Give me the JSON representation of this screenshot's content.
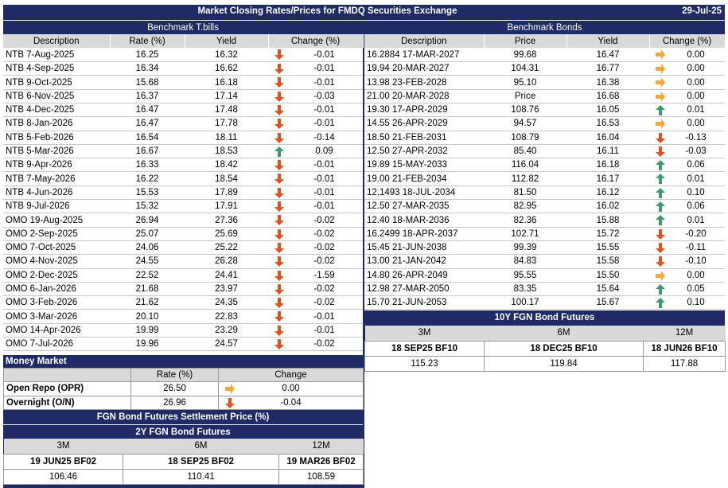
{
  "title": "Market Closing Rates/Prices for FMDQ Securities Exchange",
  "date": "29-Jul-25",
  "tbills": {
    "heading": "Benchmark T.bills",
    "columns": [
      "Description",
      "Rate (%)",
      "Yield",
      "Change (%)"
    ],
    "rows": [
      {
        "desc": "NTB 7-Aug-2025",
        "rate": "16.25",
        "yield": "16.32",
        "dir": "down",
        "chg": "-0.01"
      },
      {
        "desc": "NTB 4-Sep-2025",
        "rate": "16.34",
        "yield": "16.62",
        "dir": "down",
        "chg": "-0.01"
      },
      {
        "desc": "NTB 9-Oct-2025",
        "rate": "15.68",
        "yield": "16.18",
        "dir": "down",
        "chg": "-0.01"
      },
      {
        "desc": "NTB 6-Nov-2025",
        "rate": "16.37",
        "yield": "17.14",
        "dir": "down",
        "chg": "-0.03"
      },
      {
        "desc": "NTB 4-Dec-2025",
        "rate": "16.47",
        "yield": "17.48",
        "dir": "down",
        "chg": "-0.01"
      },
      {
        "desc": "NTB 8-Jan-2026",
        "rate": "16.47",
        "yield": "17.78",
        "dir": "down",
        "chg": "-0.01"
      },
      {
        "desc": "NTB 5-Feb-2026",
        "rate": "16.54",
        "yield": "18.11",
        "dir": "down",
        "chg": "-0.14"
      },
      {
        "desc": "NTB 5-Mar-2026",
        "rate": "16.67",
        "yield": "18.53",
        "dir": "up",
        "chg": "0.09"
      },
      {
        "desc": "NTB 9-Apr-2026",
        "rate": "16.33",
        "yield": "18.42",
        "dir": "down",
        "chg": "-0.01"
      },
      {
        "desc": "NTB 7-May-2026",
        "rate": "16.22",
        "yield": "18.54",
        "dir": "down",
        "chg": "-0.01"
      },
      {
        "desc": "NTB 4-Jun-2026",
        "rate": "15.53",
        "yield": "17.89",
        "dir": "down",
        "chg": "-0.01"
      },
      {
        "desc": "NTB 9-Jul-2026",
        "rate": "15.32",
        "yield": "17.91",
        "dir": "down",
        "chg": "-0.01"
      },
      {
        "desc": "OMO 19-Aug-2025",
        "rate": "26.94",
        "yield": "27.36",
        "dir": "down",
        "chg": "-0.02"
      },
      {
        "desc": "OMO 2-Sep-2025",
        "rate": "25.07",
        "yield": "25.69",
        "dir": "down",
        "chg": "-0.02"
      },
      {
        "desc": "OMO 7-Oct-2025",
        "rate": "24.06",
        "yield": "25.22",
        "dir": "down",
        "chg": "-0.02"
      },
      {
        "desc": "OMO 4-Nov-2025",
        "rate": "24.55",
        "yield": "26.28",
        "dir": "down",
        "chg": "-0.02"
      },
      {
        "desc": "OMO 2-Dec-2025",
        "rate": "22.52",
        "yield": "24.41",
        "dir": "down",
        "chg": "-1.59"
      },
      {
        "desc": "OMO 6-Jan-2026",
        "rate": "21.68",
        "yield": "23.97",
        "dir": "down",
        "chg": "-0.02"
      },
      {
        "desc": "OMO 3-Feb-2026",
        "rate": "21.62",
        "yield": "24.35",
        "dir": "down",
        "chg": "-0.02"
      },
      {
        "desc": "OMO 3-Mar-2026",
        "rate": "20.10",
        "yield": "22.83",
        "dir": "down",
        "chg": "-0.01"
      },
      {
        "desc": "OMO 14-Apr-2026",
        "rate": "19.99",
        "yield": "23.29",
        "dir": "down",
        "chg": "-0.01"
      },
      {
        "desc": "OMO 7-Jul-2026",
        "rate": "19.96",
        "yield": "24.57",
        "dir": "down",
        "chg": "-0.02"
      }
    ]
  },
  "bonds": {
    "heading": "Benchmark Bonds",
    "columns": [
      "Description",
      "Price",
      "Yield",
      "Change (%)"
    ],
    "rows": [
      {
        "desc": "16.2884 17-MAR-2027",
        "price": "99.68",
        "yield": "16.47",
        "dir": "flat",
        "chg": "0.00"
      },
      {
        "desc": "19.94 20-MAR-2027",
        "price": "104.31",
        "yield": "16.77",
        "dir": "flat",
        "chg": "0.00"
      },
      {
        "desc": "13.98 23-FEB-2028",
        "price": "95.10",
        "yield": "16.38",
        "dir": "flat",
        "chg": "0.00"
      },
      {
        "desc": "21.00 20-MAR-2028",
        "price": "Price",
        "yield": "16.68",
        "dir": "flat",
        "chg": "0.00"
      },
      {
        "desc": "19.30 17-APR-2029",
        "price": "108.76",
        "yield": "16.05",
        "dir": "up",
        "chg": "0.01"
      },
      {
        "desc": "14.55 26-APR-2029",
        "price": "94.57",
        "yield": "16.53",
        "dir": "flat",
        "chg": "0.00"
      },
      {
        "desc": "18.50 21-FEB-2031",
        "price": "108.79",
        "yield": "16.04",
        "dir": "down",
        "chg": "-0.13"
      },
      {
        "desc": "12.50 27-APR-2032",
        "price": "85.40",
        "yield": "16.11",
        "dir": "down",
        "chg": "-0.03"
      },
      {
        "desc": "19.89 15-MAY-2033",
        "price": "116.04",
        "yield": "16.18",
        "dir": "up",
        "chg": "0.06"
      },
      {
        "desc": "19.00 21-FEB-2034",
        "price": "112.82",
        "yield": "16.17",
        "dir": "up",
        "chg": "0.01"
      },
      {
        "desc": "12.1493 18-JUL-2034",
        "price": "81.50",
        "yield": "16.12",
        "dir": "up",
        "chg": "0.10"
      },
      {
        "desc": "12.50 27-MAR-2035",
        "price": "82.95",
        "yield": "16.02",
        "dir": "up",
        "chg": "0.06"
      },
      {
        "desc": "12.40 18-MAR-2036",
        "price": "82.36",
        "yield": "15.88",
        "dir": "up",
        "chg": "0.01"
      },
      {
        "desc": "16.2499 18-APR-2037",
        "price": "102.71",
        "yield": "15.72",
        "dir": "down",
        "chg": "-0.20"
      },
      {
        "desc": "15.45 21-JUN-2038",
        "price": "99.39",
        "yield": "15.55",
        "dir": "down",
        "chg": "-0.11"
      },
      {
        "desc": "13.00 21-JAN-2042",
        "price": "84.83",
        "yield": "15.58",
        "dir": "down",
        "chg": "-0.10"
      },
      {
        "desc": "14.80 26-APR-2049",
        "price": "95.55",
        "yield": "15.50",
        "dir": "flat",
        "chg": "0.00"
      },
      {
        "desc": "12.98 27-MAR-2050",
        "price": "83.35",
        "yield": "15.64",
        "dir": "up",
        "chg": "0.05"
      },
      {
        "desc": "15.70 21-JUN-2053",
        "price": "100.17",
        "yield": "15.67",
        "dir": "up",
        "chg": "0.10"
      }
    ]
  },
  "fut10": {
    "heading": "10Y FGN Bond Futures",
    "tenors": [
      "3M",
      "6M",
      "12M"
    ],
    "codes": [
      "18 SEP25 BF10",
      "18 DEC25 BF10",
      "18 JUN26 BF10"
    ],
    "values": [
      "115.23",
      "119.84",
      "117.88"
    ]
  },
  "money_market": {
    "heading": "Money Market",
    "columns": [
      "Rate (%)",
      "Change"
    ],
    "rows": [
      {
        "label": "Open Repo (OPR)",
        "rate": "26.50",
        "dir": "flat",
        "chg": "0.00"
      },
      {
        "label": "Overnight (O/N)",
        "rate": "26.96",
        "dir": "down",
        "chg": "-0.04"
      }
    ]
  },
  "fgn": {
    "heading": "FGN Bond Futures Settlement Price (%)",
    "subheading": "2Y FGN Bond Futures",
    "tenors": [
      "3M",
      "6M",
      "12M"
    ],
    "codes": [
      "19 JUN25 BF02",
      "18 SEP25 BF02",
      "19 MAR26 BF02"
    ],
    "values": [
      "106.46",
      "110.41",
      "108.59"
    ]
  },
  "colors": {
    "navy": "#1f2a66",
    "down": "#e0521d",
    "up": "#3d9a6c",
    "flat": "#f2a93b"
  }
}
